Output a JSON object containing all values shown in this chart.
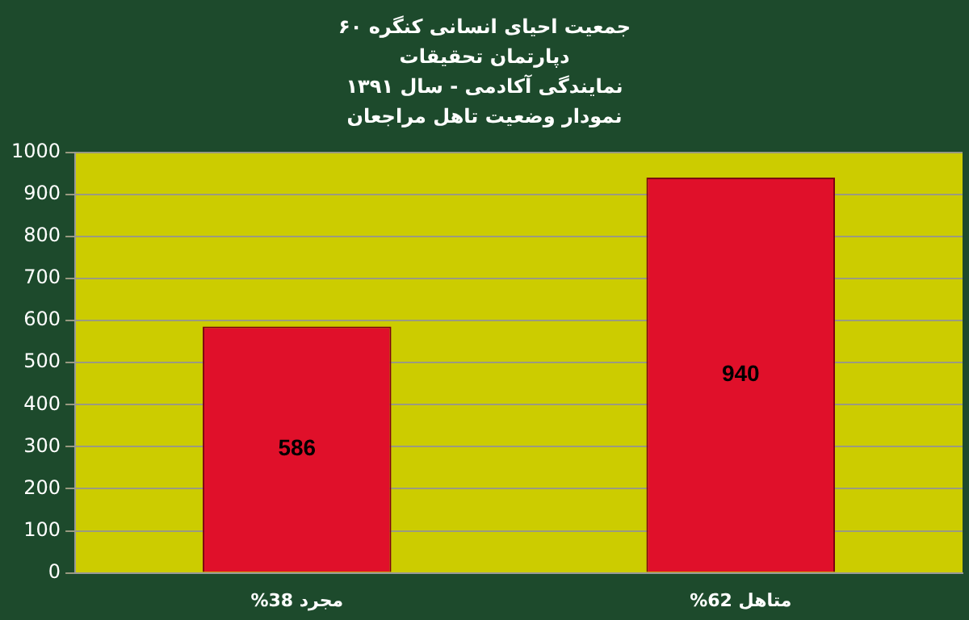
{
  "chart_data": {
    "type": "bar",
    "title": [
      "جمعیت احیای انسانی کنگره ۶۰",
      "دپارتمان تحقیقات",
      "نمایندگی آکادمی - سال ۱۳۹۱",
      "نمودار وضعیت تاهل مراجعان"
    ],
    "categories": [
      "%38 مجرد",
      "%62 متاهل"
    ],
    "values": [
      586,
      940
    ],
    "color": "#e0102a",
    "ylim": [
      0,
      1000
    ],
    "yticks": [
      0,
      100,
      200,
      300,
      400,
      500,
      600,
      700,
      800,
      900,
      1000
    ],
    "grid": "y",
    "data_labels": true
  }
}
